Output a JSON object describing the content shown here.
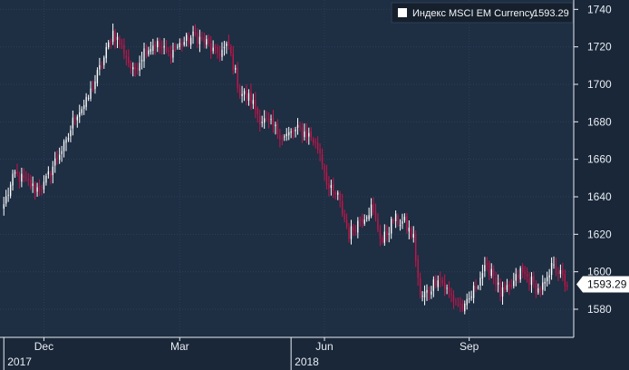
{
  "chart_data": {
    "type": "candlestick",
    "title": "",
    "xlabel": "",
    "ylabel": "",
    "legend": {
      "label": "Индекс MSCI EM Currency",
      "value": "1593.29",
      "placement": "top-right"
    },
    "last_value_tag": "1593.29",
    "ylim": [
      1565,
      1745
    ],
    "y_ticks": [
      1580,
      1600,
      1620,
      1640,
      1660,
      1680,
      1700,
      1720,
      1740
    ],
    "x_month_ticks": [
      {
        "label": "Dec",
        "index": 18
      },
      {
        "label": "Mar",
        "index": 79
      },
      {
        "label": "Jun",
        "index": 144
      },
      {
        "label": "Sep",
        "index": 209
      }
    ],
    "x_year_ticks": [
      {
        "label": "2017",
        "index": 0
      },
      {
        "label": "2018",
        "index": 129
      }
    ],
    "grid": true,
    "colors": {
      "up": "#ffffff",
      "down": "#c8144a",
      "background": "#1e2e43",
      "grid": "#2c3f58",
      "tag": "#ffffff"
    },
    "anchors_close": [
      [
        0,
        1636
      ],
      [
        5,
        1652
      ],
      [
        10,
        1648
      ],
      [
        14,
        1644
      ],
      [
        18,
        1646
      ],
      [
        25,
        1664
      ],
      [
        28,
        1668
      ],
      [
        32,
        1684
      ],
      [
        37,
        1690
      ],
      [
        41,
        1702
      ],
      [
        45,
        1714
      ],
      [
        49,
        1728
      ],
      [
        54,
        1718
      ],
      [
        58,
        1706
      ],
      [
        63,
        1718
      ],
      [
        68,
        1722
      ],
      [
        74,
        1716
      ],
      [
        80,
        1722
      ],
      [
        86,
        1726
      ],
      [
        91,
        1722
      ],
      [
        95,
        1716
      ],
      [
        101,
        1720
      ],
      [
        106,
        1696
      ],
      [
        111,
        1692
      ],
      [
        115,
        1682
      ],
      [
        120,
        1678
      ],
      [
        126,
        1672
      ],
      [
        133,
        1676
      ],
      [
        138,
        1672
      ],
      [
        142,
        1664
      ],
      [
        146,
        1644
      ],
      [
        150,
        1640
      ],
      [
        155,
        1620
      ],
      [
        160,
        1628
      ],
      [
        165,
        1634
      ],
      [
        170,
        1616
      ],
      [
        175,
        1628
      ],
      [
        180,
        1626
      ],
      [
        184,
        1618
      ],
      [
        187,
        1586
      ],
      [
        191,
        1590
      ],
      [
        195,
        1598
      ],
      [
        199,
        1590
      ],
      [
        203,
        1584
      ],
      [
        207,
        1580
      ],
      [
        211,
        1590
      ],
      [
        215,
        1600
      ],
      [
        219,
        1602
      ],
      [
        223,
        1588
      ],
      [
        227,
        1590
      ],
      [
        232,
        1600
      ],
      [
        236,
        1596
      ],
      [
        240,
        1590
      ],
      [
        244,
        1594
      ],
      [
        247,
        1606
      ],
      [
        250,
        1598
      ],
      [
        253,
        1592
      ]
    ]
  }
}
